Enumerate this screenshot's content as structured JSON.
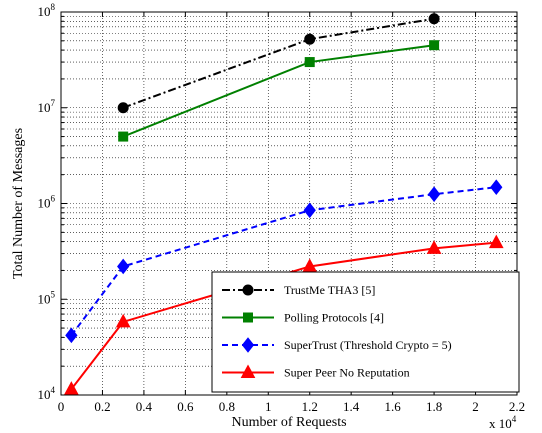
{
  "chart_data": {
    "type": "line",
    "xlabel": "Number of Requests",
    "ylabel": "Total Number of Messages",
    "x_multiplier_label": "x 10",
    "x_multiplier_exp": "4",
    "xlim": [
      0,
      2.2
    ],
    "xticks": [
      0,
      0.2,
      0.4,
      0.6,
      0.8,
      1,
      1.2,
      1.4,
      1.6,
      1.8,
      2,
      2.2
    ],
    "xtick_labels": [
      "0",
      "0.2",
      "0.4",
      "0.6",
      "0.8",
      "1",
      "1.2",
      "1.4",
      "1.6",
      "1.8",
      "2",
      "2.2"
    ],
    "yscale": "log",
    "ylim": [
      10000,
      100000000
    ],
    "ytick_exps": [
      4,
      5,
      6,
      7,
      8
    ],
    "grid": true,
    "legend_position": "bottom-right",
    "series": [
      {
        "name": "TrustMe THA3 [5]",
        "color": "#000000",
        "dash": "dashdot",
        "marker": "circle",
        "x": [
          0.3,
          1.2,
          1.8
        ],
        "y": [
          10000000,
          52000000,
          85000000
        ]
      },
      {
        "name": "Polling Protocols [4]",
        "color": "#008000",
        "dash": "solid",
        "marker": "square",
        "x": [
          0.3,
          1.2,
          1.8
        ],
        "y": [
          5000000,
          30000000,
          45000000
        ]
      },
      {
        "name": "SuperTrust (Threshold Crypto = 5)",
        "color": "#0000ff",
        "dash": "dashed",
        "marker": "diamond",
        "x": [
          0.05,
          0.3,
          1.2,
          1.8,
          2.1
        ],
        "y": [
          42000,
          220000,
          850000,
          1250000,
          1480000
        ]
      },
      {
        "name": "Super Peer No Reputation",
        "color": "#ff0000",
        "dash": "solid",
        "marker": "triangle",
        "x": [
          0.05,
          0.3,
          1.2,
          1.8,
          2.1
        ],
        "y": [
          11500,
          58000,
          220000,
          340000,
          390000
        ]
      }
    ]
  }
}
